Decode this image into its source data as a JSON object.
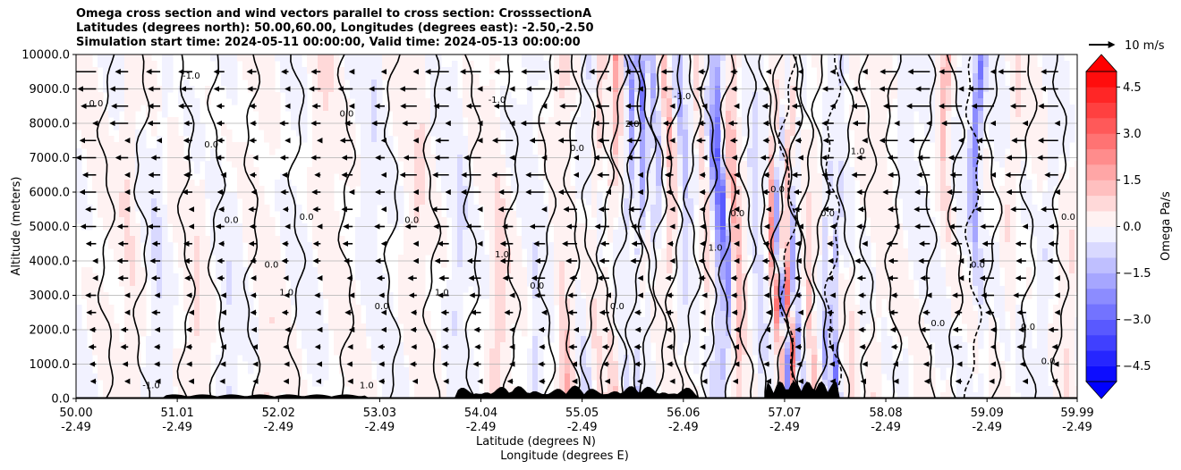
{
  "title_lines": [
    "Omega cross section and wind vectors parallel to cross section: CrosssectionA",
    "Latitudes (degrees north): 50.00,60.00, Longitudes (degrees east): -2.50,-2.50",
    "Simulation start time: 2024-05-11 00:00:00, Valid time: 2024-05-13 00:00:00"
  ],
  "chart_data": {
    "type": "heatmap",
    "ylabel": "Altitude (meters)",
    "xlabel_lines": [
      "Latitude (degrees N)",
      "Longitude (degrees E)"
    ],
    "xlim": [
      50.0,
      59.99
    ],
    "ylim": [
      0,
      10000
    ],
    "x_ticks": [
      {
        "lat": "50.00",
        "lon": "-2.49"
      },
      {
        "lat": "51.01",
        "lon": "-2.49"
      },
      {
        "lat": "52.02",
        "lon": "-2.49"
      },
      {
        "lat": "53.03",
        "lon": "-2.49"
      },
      {
        "lat": "54.04",
        "lon": "-2.49"
      },
      {
        "lat": "55.05",
        "lon": "-2.49"
      },
      {
        "lat": "56.06",
        "lon": "-2.49"
      },
      {
        "lat": "57.07",
        "lon": "-2.49"
      },
      {
        "lat": "58.08",
        "lon": "-2.49"
      },
      {
        "lat": "59.09",
        "lon": "-2.49"
      },
      {
        "lat": "59.99",
        "lon": "-2.49"
      }
    ],
    "y_ticks": [
      "0.0",
      "1000.0",
      "2000.0",
      "3000.0",
      "4000.0",
      "5000.0",
      "6000.0",
      "7000.0",
      "8000.0",
      "9000.0",
      "10000.0"
    ],
    "grid": "horizontal",
    "colorbar": {
      "label": "Omega Pa/s",
      "range": [
        -5.0,
        5.0
      ],
      "levels_step": 0.5,
      "ticks": [
        "4.5",
        "3.0",
        "1.5",
        "0.0",
        "−1.5",
        "−3.0",
        "−4.5"
      ],
      "extend": "both",
      "colormap": "bwr"
    },
    "quiver_key": {
      "label": "10 m/s",
      "placement": "top-right"
    },
    "contour_labels": [
      "0.0",
      "1.0",
      "-1.0",
      "2.0"
    ],
    "wind": "mostly westward (southward along section) aloft, weak near surface",
    "terrain_color": "#000000",
    "colors": {
      "positive": "#ff0000",
      "negative": "#0000ff",
      "neutral": "#ffffff"
    }
  }
}
